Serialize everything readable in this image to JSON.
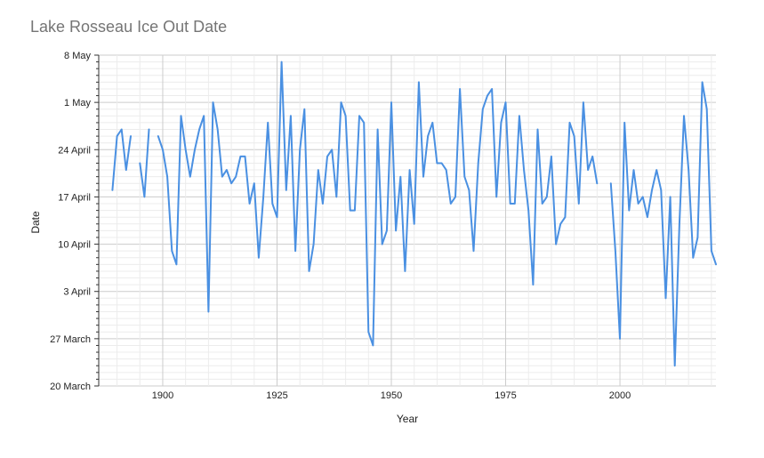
{
  "chart_data": {
    "type": "line",
    "title": "Lake Rosseau Ice Out Date",
    "xlabel": "Year",
    "ylabel": "Date",
    "xlim": [
      1886,
      2021
    ],
    "ylim": [
      "2022-03-20",
      "2022-05-08"
    ],
    "x_ticks": [
      1900,
      1925,
      1950,
      1975,
      2000
    ],
    "y_ticks": [
      {
        "date": "2022-03-20",
        "label": "20 March"
      },
      {
        "date": "2022-03-27",
        "label": "27 March"
      },
      {
        "date": "2022-04-03",
        "label": "3 April"
      },
      {
        "date": "2022-04-10",
        "label": "10 April"
      },
      {
        "date": "2022-04-17",
        "label": "17 April"
      },
      {
        "date": "2022-04-24",
        "label": "24 April"
      },
      {
        "date": "2022-05-01",
        "label": "1 May"
      },
      {
        "date": "2022-05-08",
        "label": "8 May"
      }
    ],
    "grid": true,
    "legend": "none",
    "color": "#4a90e2",
    "series": [
      {
        "x": [
          1886,
          1887,
          1888,
          1889,
          1890,
          1891,
          1892,
          1893,
          1894,
          1895,
          1896,
          1897,
          1898,
          1899,
          1900,
          1901,
          1902,
          1903,
          1904,
          1905,
          1906,
          1907,
          1908,
          1909,
          1910,
          1911,
          1912,
          1913,
          1914,
          1915,
          1916,
          1917,
          1918,
          1919,
          1920,
          1921,
          1922,
          1923,
          1924,
          1925,
          1926,
          1927,
          1928,
          1929,
          1930,
          1931,
          1932,
          1933,
          1934,
          1935,
          1936,
          1937,
          1938,
          1939,
          1940,
          1941,
          1942,
          1943,
          1944,
          1945,
          1946,
          1947,
          1948,
          1949,
          1950,
          1951,
          1952,
          1953,
          1954,
          1955,
          1956,
          1957,
          1958,
          1959,
          1960,
          1961,
          1962,
          1963,
          1964,
          1965,
          1966,
          1967,
          1968,
          1969,
          1970,
          1971,
          1972,
          1973,
          1974,
          1975,
          1976,
          1977,
          1978,
          1979,
          1980,
          1981,
          1982,
          1983,
          1984,
          1985,
          1986,
          1987,
          1988,
          1989,
          1990,
          1991,
          1992,
          1993,
          1994,
          1995,
          1996,
          1997,
          1998,
          1999,
          2000,
          2001,
          2002,
          2003,
          2004,
          2005,
          2006,
          2007,
          2008,
          2009,
          2010,
          2011,
          2012,
          2013,
          2014,
          2015,
          2016,
          2017,
          2018,
          2019,
          2020,
          2021
        ],
        "y": [
          "2022-04-23",
          null,
          null,
          "2022-04-18",
          "2022-04-26",
          "2022-04-27",
          "2022-04-21",
          "2022-04-26",
          null,
          "2022-04-22",
          "2022-04-17",
          "2022-04-27",
          null,
          "2022-04-26",
          "2022-04-24",
          "2022-04-20",
          "2022-04-09",
          "2022-04-07",
          "2022-04-29",
          "2022-04-24",
          "2022-04-20",
          "2022-04-24",
          "2022-04-27",
          "2022-04-29",
          "2022-03-31",
          "2022-05-01",
          "2022-04-27",
          "2022-04-20",
          "2022-04-21",
          "2022-04-19",
          "2022-04-20",
          "2022-04-23",
          "2022-04-23",
          "2022-04-16",
          "2022-04-19",
          "2022-04-08",
          "2022-04-17",
          "2022-04-28",
          "2022-04-16",
          "2022-04-14",
          "2022-05-07",
          "2022-04-18",
          "2022-04-29",
          "2022-04-09",
          "2022-04-24",
          "2022-04-30",
          "2022-04-06",
          "2022-04-10",
          "2022-04-21",
          "2022-04-16",
          "2022-04-23",
          "2022-04-24",
          "2022-04-17",
          "2022-05-01",
          "2022-04-29",
          "2022-04-15",
          "2022-04-15",
          "2022-04-29",
          "2022-04-28",
          "2022-03-28",
          "2022-03-26",
          "2022-04-27",
          "2022-04-10",
          "2022-04-12",
          "2022-05-01",
          "2022-04-12",
          "2022-04-20",
          "2022-04-06",
          "2022-04-21",
          "2022-04-13",
          "2022-05-04",
          "2022-04-20",
          "2022-04-26",
          "2022-04-28",
          "2022-04-22",
          "2022-04-22",
          "2022-04-21",
          "2022-04-16",
          "2022-04-17",
          "2022-05-03",
          "2022-04-20",
          "2022-04-18",
          "2022-04-09",
          "2022-04-22",
          "2022-04-30",
          "2022-05-02",
          "2022-05-03",
          "2022-04-17",
          "2022-04-28",
          "2022-05-01",
          "2022-04-16",
          "2022-04-16",
          "2022-04-29",
          "2022-04-21",
          "2022-04-15",
          "2022-04-04",
          "2022-04-27",
          "2022-04-16",
          "2022-04-17",
          "2022-04-23",
          "2022-04-10",
          "2022-04-13",
          "2022-04-14",
          "2022-04-28",
          "2022-04-26",
          "2022-04-16",
          "2022-05-01",
          "2022-04-21",
          "2022-04-23",
          "2022-04-19",
          null,
          null,
          "2022-04-19",
          "2022-04-09",
          "2022-03-27",
          "2022-04-28",
          "2022-04-15",
          "2022-04-21",
          "2022-04-16",
          "2022-04-17",
          "2022-04-14",
          "2022-04-18",
          "2022-04-21",
          "2022-04-18",
          "2022-04-02",
          "2022-04-17",
          "2022-03-23",
          "2022-04-13",
          "2022-04-29",
          "2022-04-21",
          "2022-04-08",
          "2022-04-11",
          "2022-05-04",
          "2022-04-30",
          "2022-04-09",
          "2022-04-07"
        ]
      }
    ]
  }
}
